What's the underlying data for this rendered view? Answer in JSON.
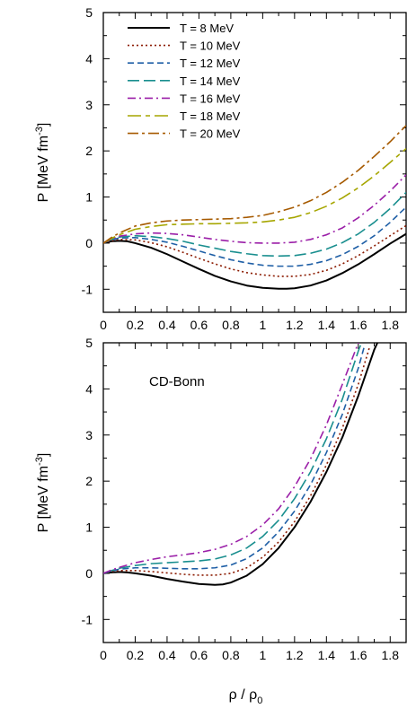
{
  "chart_data": [
    {
      "type": "line",
      "ylabel": "P [MeV fm",
      "ylabel_sup": "-3",
      "ylabel_tail": "]",
      "xlim": [
        0,
        1.9
      ],
      "ylim": [
        -1.5,
        5
      ],
      "x_ticks": [
        0,
        0.2,
        0.4,
        0.6,
        0.8,
        1,
        1.2,
        1.4,
        1.6,
        1.8
      ],
      "x_tick_labels": [
        "0",
        "0.2",
        "0.4",
        "0.6",
        "0.8",
        "1",
        "1.2",
        "1.4",
        "1.6",
        "1.8"
      ],
      "y_ticks": [
        -1,
        0,
        1,
        2,
        3,
        4,
        5
      ],
      "y_tick_labels": [
        "-1",
        "0",
        "1",
        "2",
        "3",
        "4",
        "5"
      ],
      "legend_position": "top-left",
      "series": [
        {
          "name": "T = 8 MeV",
          "color": "#000000",
          "dash": "solid",
          "x": [
            0,
            0.05,
            0.1,
            0.15,
            0.2,
            0.3,
            0.4,
            0.5,
            0.6,
            0.7,
            0.8,
            0.9,
            1.0,
            1.1,
            1.15,
            1.2,
            1.3,
            1.4,
            1.5,
            1.6,
            1.7,
            1.8,
            1.9
          ],
          "y": [
            0,
            0.04,
            0.05,
            0.04,
            0.0,
            -0.1,
            -0.24,
            -0.4,
            -0.56,
            -0.71,
            -0.83,
            -0.92,
            -0.97,
            -0.99,
            -0.99,
            -0.98,
            -0.92,
            -0.81,
            -0.65,
            -0.46,
            -0.24,
            -0.01,
            0.2
          ]
        },
        {
          "name": "T = 10 MeV",
          "color": "#8b1a00",
          "dash": "dot",
          "x": [
            0,
            0.05,
            0.1,
            0.2,
            0.3,
            0.4,
            0.5,
            0.6,
            0.7,
            0.8,
            0.9,
            1.0,
            1.1,
            1.2,
            1.3,
            1.4,
            1.5,
            1.6,
            1.7,
            1.8,
            1.9
          ],
          "y": [
            0,
            0.05,
            0.08,
            0.07,
            0.01,
            -0.08,
            -0.2,
            -0.33,
            -0.45,
            -0.56,
            -0.64,
            -0.69,
            -0.72,
            -0.72,
            -0.68,
            -0.59,
            -0.45,
            -0.27,
            -0.06,
            0.16,
            0.38
          ]
        },
        {
          "name": "T = 12 MeV",
          "color": "#1f5fa6",
          "dash": "dash",
          "x": [
            0,
            0.05,
            0.1,
            0.2,
            0.3,
            0.4,
            0.5,
            0.6,
            0.7,
            0.8,
            0.9,
            1.0,
            1.1,
            1.2,
            1.3,
            1.4,
            1.5,
            1.6,
            1.7,
            1.8,
            1.9
          ],
          "y": [
            0,
            0.07,
            0.11,
            0.12,
            0.08,
            0.02,
            -0.07,
            -0.17,
            -0.27,
            -0.36,
            -0.43,
            -0.48,
            -0.5,
            -0.5,
            -0.46,
            -0.38,
            -0.25,
            -0.07,
            0.16,
            0.45,
            0.78
          ]
        },
        {
          "name": "T = 14 MeV",
          "color": "#1a8f8f",
          "dash": "longdash",
          "x": [
            0,
            0.05,
            0.1,
            0.2,
            0.3,
            0.4,
            0.5,
            0.6,
            0.7,
            0.8,
            0.9,
            1.0,
            1.1,
            1.2,
            1.3,
            1.4,
            1.5,
            1.6,
            1.7,
            1.8,
            1.9
          ],
          "y": [
            0,
            0.08,
            0.13,
            0.16,
            0.14,
            0.1,
            0.04,
            -0.04,
            -0.11,
            -0.18,
            -0.23,
            -0.27,
            -0.28,
            -0.27,
            -0.22,
            -0.13,
            0.01,
            0.2,
            0.45,
            0.75,
            1.1
          ]
        },
        {
          "name": "T = 16 MeV",
          "color": "#9b1fa8",
          "dash": "dashdot",
          "x": [
            0,
            0.05,
            0.1,
            0.2,
            0.3,
            0.4,
            0.5,
            0.6,
            0.7,
            0.8,
            0.9,
            1.0,
            1.1,
            1.2,
            1.3,
            1.4,
            1.5,
            1.6,
            1.7,
            1.8,
            1.9
          ],
          "y": [
            0,
            0.09,
            0.15,
            0.2,
            0.22,
            0.21,
            0.18,
            0.13,
            0.08,
            0.04,
            0.01,
            0.0,
            0.0,
            0.02,
            0.08,
            0.18,
            0.33,
            0.55,
            0.82,
            1.13,
            1.48
          ]
        },
        {
          "name": "T = 18 MeV",
          "color": "#a6a600",
          "dash": "longdashgap",
          "x": [
            0,
            0.05,
            0.1,
            0.2,
            0.3,
            0.4,
            0.5,
            0.6,
            0.7,
            0.8,
            0.9,
            1.0,
            1.1,
            1.2,
            1.3,
            1.4,
            1.5,
            1.6,
            1.7,
            1.8,
            1.9
          ],
          "y": [
            0,
            0.1,
            0.18,
            0.3,
            0.36,
            0.4,
            0.41,
            0.42,
            0.42,
            0.43,
            0.44,
            0.46,
            0.5,
            0.56,
            0.66,
            0.8,
            0.98,
            1.2,
            1.46,
            1.75,
            2.05
          ]
        },
        {
          "name": "T = 20 MeV",
          "color": "#a65a00",
          "dash": "dashdotlong",
          "x": [
            0,
            0.05,
            0.1,
            0.2,
            0.3,
            0.4,
            0.5,
            0.6,
            0.7,
            0.8,
            0.9,
            1.0,
            1.1,
            1.2,
            1.3,
            1.4,
            1.5,
            1.6,
            1.7,
            1.8,
            1.9
          ],
          "y": [
            0,
            0.12,
            0.22,
            0.37,
            0.44,
            0.48,
            0.5,
            0.51,
            0.52,
            0.53,
            0.56,
            0.6,
            0.68,
            0.78,
            0.92,
            1.1,
            1.32,
            1.58,
            1.88,
            2.2,
            2.55
          ]
        }
      ]
    },
    {
      "type": "line",
      "annotation": "CD-Bonn",
      "xlabel": "ρ / ρ",
      "xlabel_sub": "0",
      "ylabel": "P [MeV fm",
      "ylabel_sup": "-3",
      "ylabel_tail": "]",
      "xlim": [
        0,
        1.9
      ],
      "ylim": [
        -1.5,
        5
      ],
      "x_ticks": [
        0,
        0.2,
        0.4,
        0.6,
        0.8,
        1,
        1.2,
        1.4,
        1.6,
        1.8
      ],
      "x_tick_labels": [
        "0",
        "0.2",
        "0.4",
        "0.6",
        "0.8",
        "1",
        "1.2",
        "1.4",
        "1.6",
        "1.8"
      ],
      "y_ticks": [
        -1,
        0,
        1,
        2,
        3,
        4,
        5
      ],
      "y_tick_labels": [
        "-1",
        "0",
        "1",
        "2",
        "3",
        "4",
        "5"
      ],
      "series": [
        {
          "name": "T = 8 MeV",
          "color": "#000000",
          "dash": "solid",
          "x": [
            0,
            0.05,
            0.1,
            0.15,
            0.2,
            0.3,
            0.4,
            0.5,
            0.6,
            0.7,
            0.75,
            0.8,
            0.9,
            1.0,
            1.1,
            1.2,
            1.3,
            1.4,
            1.5,
            1.6,
            1.7,
            1.72
          ],
          "y": [
            0,
            0.02,
            0.03,
            0.02,
            0.0,
            -0.05,
            -0.12,
            -0.18,
            -0.23,
            -0.25,
            -0.24,
            -0.2,
            -0.05,
            0.2,
            0.55,
            1.0,
            1.55,
            2.2,
            2.95,
            3.85,
            4.85,
            5.0
          ]
        },
        {
          "name": "T = 10 MeV",
          "color": "#8b1a00",
          "dash": "dot",
          "x": [
            0,
            0.05,
            0.1,
            0.2,
            0.3,
            0.4,
            0.5,
            0.6,
            0.7,
            0.8,
            0.9,
            1.0,
            1.1,
            1.2,
            1.3,
            1.4,
            1.5,
            1.6,
            1.67
          ],
          "y": [
            0,
            0.04,
            0.06,
            0.06,
            0.04,
            0.01,
            -0.02,
            -0.04,
            -0.04,
            0.0,
            0.12,
            0.35,
            0.68,
            1.12,
            1.68,
            2.35,
            3.15,
            4.1,
            4.9
          ]
        },
        {
          "name": "T = 12 MeV",
          "color": "#1f5fa6",
          "dash": "dash",
          "x": [
            0,
            0.05,
            0.1,
            0.2,
            0.3,
            0.4,
            0.5,
            0.6,
            0.7,
            0.8,
            0.9,
            1.0,
            1.1,
            1.2,
            1.3,
            1.4,
            1.5,
            1.6,
            1.64
          ],
          "y": [
            0,
            0.05,
            0.09,
            0.12,
            0.12,
            0.11,
            0.1,
            0.1,
            0.12,
            0.18,
            0.32,
            0.55,
            0.9,
            1.35,
            1.92,
            2.62,
            3.45,
            4.45,
            4.95
          ]
        },
        {
          "name": "T = 14 MeV",
          "color": "#1a8f8f",
          "dash": "longdash",
          "x": [
            0,
            0.05,
            0.1,
            0.2,
            0.3,
            0.4,
            0.5,
            0.6,
            0.7,
            0.8,
            0.9,
            1.0,
            1.1,
            1.2,
            1.3,
            1.4,
            1.5,
            1.6,
            1.62
          ],
          "y": [
            0,
            0.06,
            0.11,
            0.17,
            0.21,
            0.23,
            0.25,
            0.27,
            0.31,
            0.4,
            0.55,
            0.8,
            1.15,
            1.62,
            2.2,
            2.92,
            3.78,
            4.82,
            5.0
          ]
        },
        {
          "name": "T = 16 MeV",
          "color": "#9b1fa8",
          "dash": "dashdot",
          "x": [
            0,
            0.05,
            0.1,
            0.2,
            0.3,
            0.4,
            0.5,
            0.6,
            0.7,
            0.8,
            0.9,
            1.0,
            1.1,
            1.2,
            1.3,
            1.4,
            1.5,
            1.6
          ],
          "y": [
            0,
            0.07,
            0.13,
            0.23,
            0.3,
            0.36,
            0.4,
            0.45,
            0.52,
            0.63,
            0.8,
            1.05,
            1.4,
            1.88,
            2.48,
            3.22,
            4.1,
            5.0
          ]
        }
      ]
    }
  ]
}
